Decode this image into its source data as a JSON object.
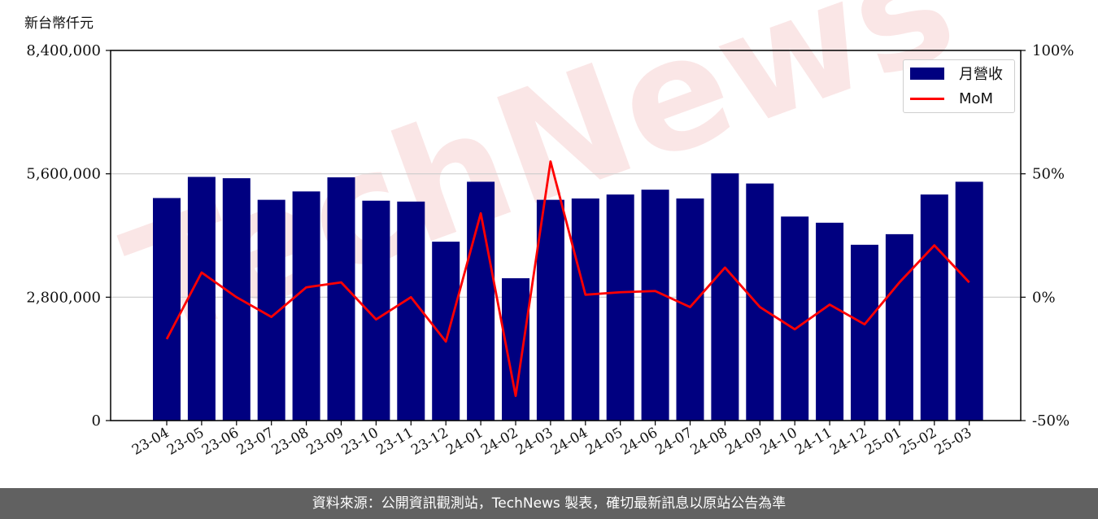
{
  "unit_label": "新台幣仟元",
  "footer": "資料來源：公開資訊觀測站，TechNews 製表，確切最新訊息以原站公告為準",
  "watermark_text": "TechNews",
  "colors": {
    "bar": "#000080",
    "line": "#ff0000",
    "grid": "#cccccc",
    "footer_bg": "#616161"
  },
  "chart_data": {
    "type": "bar",
    "categories": [
      "23-04",
      "23-05",
      "23-06",
      "23-07",
      "23-08",
      "23-09",
      "23-10",
      "23-11",
      "23-12",
      "24-01",
      "24-02",
      "24-03",
      "24-04",
      "24-05",
      "24-06",
      "24-07",
      "24-08",
      "24-09",
      "24-10",
      "24-11",
      "24-12",
      "25-01",
      "25-02",
      "25-03"
    ],
    "series": [
      {
        "name": "月營收",
        "type": "bar",
        "axis": "left",
        "values": [
          5050000,
          5530000,
          5500000,
          5010000,
          5200000,
          5520000,
          4990000,
          4970000,
          4060000,
          5420000,
          3230000,
          5010000,
          5040000,
          5130000,
          5240000,
          5040000,
          5610000,
          5380000,
          4630000,
          4490000,
          3990000,
          4230000,
          5130000,
          5420000
        ]
      },
      {
        "name": "MoM",
        "type": "line",
        "axis": "right",
        "values": [
          -17,
          10,
          0,
          -8,
          4,
          6,
          -9,
          0,
          -18,
          34,
          -40,
          55,
          1,
          2,
          2.5,
          -4,
          12,
          -4,
          -13,
          -3,
          -11,
          6,
          21,
          6
        ]
      }
    ],
    "y_left": {
      "ticks": [
        "0",
        "2,800,000",
        "5,600,000",
        "8,400,000"
      ],
      "tick_values": [
        0,
        2800000,
        5600000,
        8400000
      ],
      "ylim": [
        0,
        8400000
      ]
    },
    "y_right": {
      "ticks": [
        "-50%",
        "0%",
        "50%",
        "100%"
      ],
      "tick_values": [
        -50,
        0,
        50,
        100
      ],
      "ylim": [
        -50,
        100
      ]
    },
    "grid": true,
    "legend": "top-right"
  }
}
